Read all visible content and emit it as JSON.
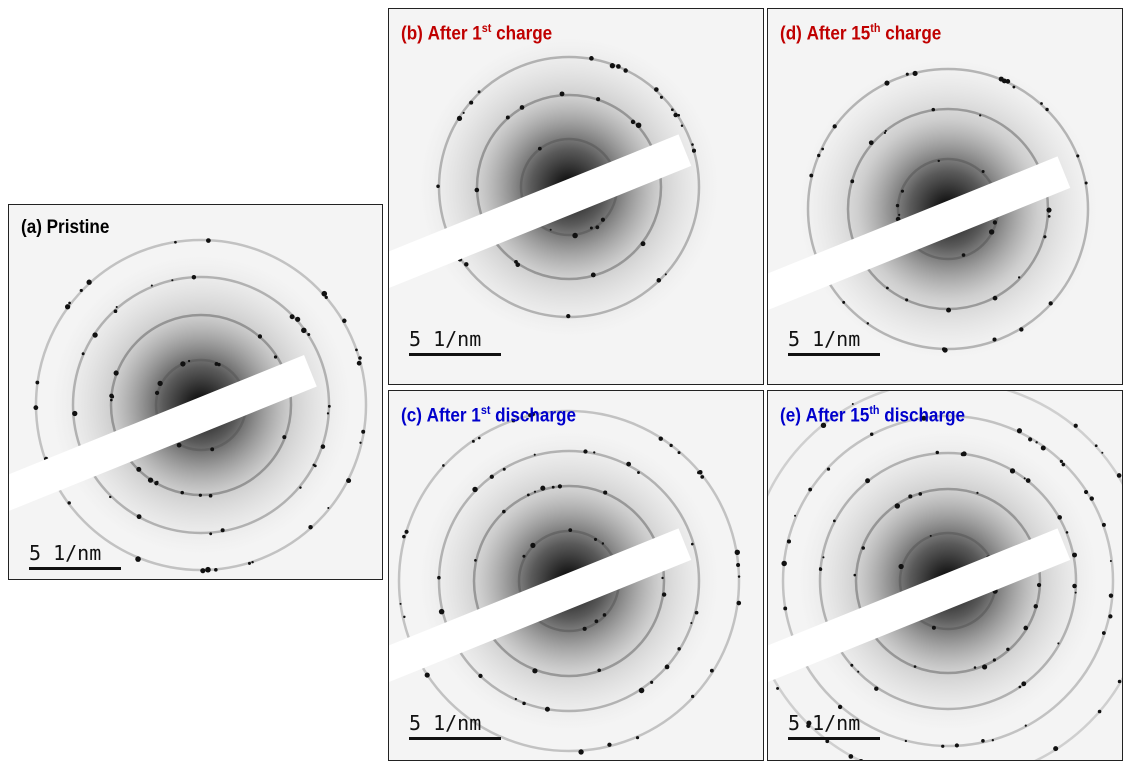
{
  "panels": [
    {
      "label": {
        "prefix": "(a) Pristine",
        "sup": null,
        "suffix": null
      },
      "scale_bar": "5 1/nm"
    },
    {
      "label": {
        "prefix": "(b) After 1",
        "sup": "st",
        "suffix": " charge"
      },
      "scale_bar": "5 1/nm"
    },
    {
      "label": {
        "prefix": "(d) After 15",
        "sup": "th",
        "suffix": " charge"
      },
      "scale_bar": "5 1/nm"
    },
    {
      "label": {
        "prefix": "(c) After 1",
        "sup": "st",
        "suffix": " discharge"
      },
      "scale_bar": "5 1/nm"
    },
    {
      "label": {
        "prefix": "(e) After 15",
        "sup": "th",
        "suffix": " discharge"
      },
      "scale_bar": "5 1/nm"
    }
  ]
}
